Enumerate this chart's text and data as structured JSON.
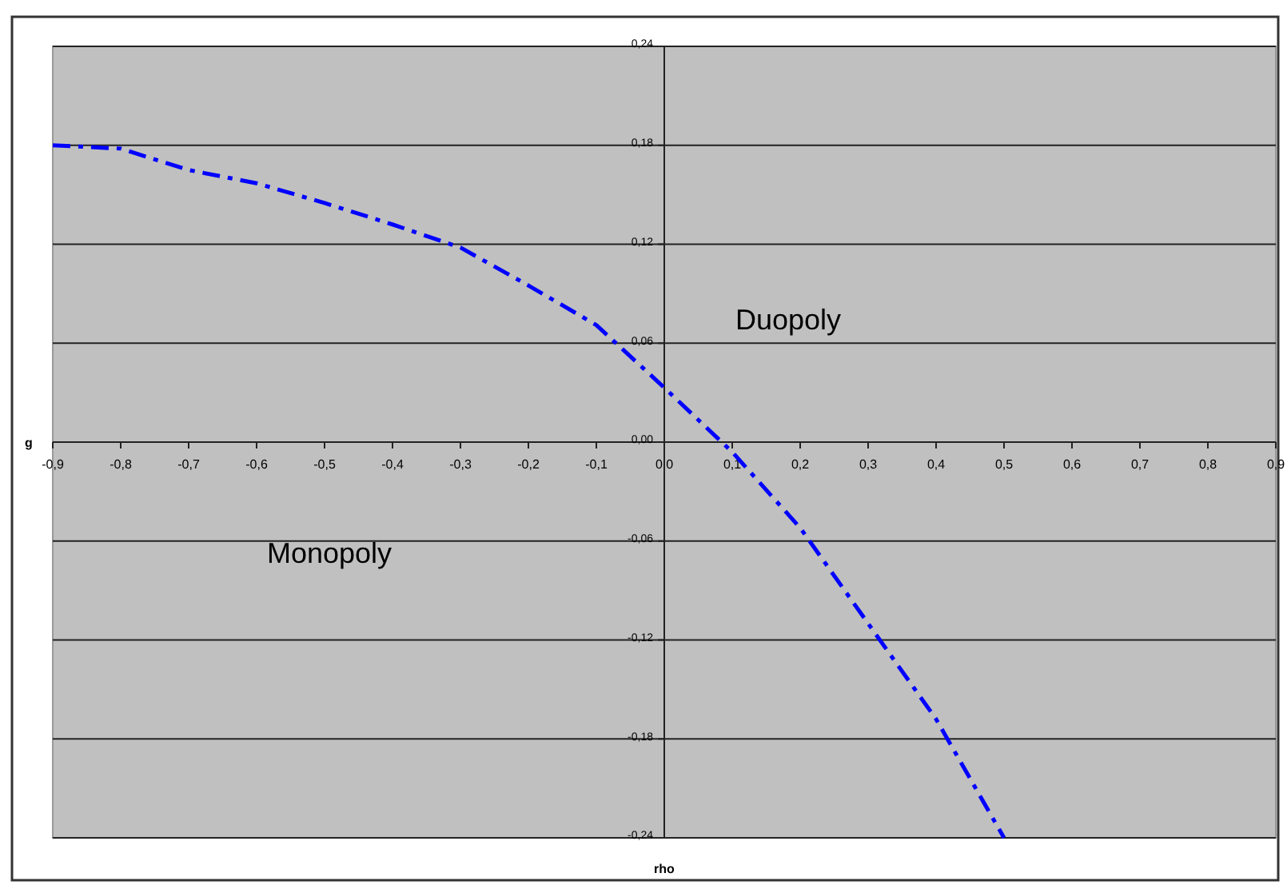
{
  "chart_data": {
    "type": "line",
    "xlabel": "rho",
    "ylabel": "g",
    "annotations": [
      "Duopoly",
      "Monopoly"
    ],
    "xlim": [
      -0.9,
      0.9
    ],
    "xticks": [
      {
        "value": -0.9,
        "label": "-0,9"
      },
      {
        "value": -0.8,
        "label": "-0,8"
      },
      {
        "value": -0.7,
        "label": "-0,7"
      },
      {
        "value": -0.6,
        "label": "-0,6"
      },
      {
        "value": -0.5,
        "label": "-0,5"
      },
      {
        "value": -0.4,
        "label": "-0,4"
      },
      {
        "value": -0.3,
        "label": "-0,3"
      },
      {
        "value": -0.2,
        "label": "-0,2"
      },
      {
        "value": -0.1,
        "label": "-0,1"
      },
      {
        "value": 0,
        "label": "0,0"
      },
      {
        "value": 0.1,
        "label": "0,1"
      },
      {
        "value": 0.2,
        "label": "0,2"
      },
      {
        "value": 0.3,
        "label": "0,3"
      },
      {
        "value": 0.4,
        "label": "0,4"
      },
      {
        "value": 0.5,
        "label": "0,5"
      },
      {
        "value": 0.6,
        "label": "0,6"
      },
      {
        "value": 0.7,
        "label": "0,7"
      },
      {
        "value": 0.8,
        "label": "0,8"
      },
      {
        "value": 0.9,
        "label": "0,9"
      }
    ],
    "ylim": [
      -0.24,
      0.24
    ],
    "yticks": [
      {
        "value": -0.24,
        "label": "-0,24"
      },
      {
        "value": -0.18,
        "label": "-0,18"
      },
      {
        "value": -0.12,
        "label": "-0,12"
      },
      {
        "value": -0.06,
        "label": "-0,06"
      },
      {
        "value": 0,
        "label": "0,00"
      },
      {
        "value": 0.06,
        "label": "0,06"
      },
      {
        "value": 0.12,
        "label": "0,12"
      },
      {
        "value": 0.18,
        "label": "0,18"
      },
      {
        "value": 0.24,
        "label": "0,24"
      }
    ],
    "grid": "y",
    "line_style": "dashed",
    "marker": "none",
    "series": [
      {
        "color": "#0000ff",
        "x": [
          -0.9,
          -0.8,
          -0.7,
          -0.6,
          -0.5,
          -0.4,
          -0.3,
          -0.2,
          -0.1,
          0,
          0.1,
          0.2,
          0.3,
          0.4,
          0.5
        ],
        "values": [
          0.18,
          0.178,
          0.165,
          0.157,
          0.145,
          0.132,
          0.118,
          0.095,
          0.071,
          0.033,
          -0.006,
          -0.052,
          -0.11,
          -0.168,
          -0.24
        ]
      }
    ]
  }
}
